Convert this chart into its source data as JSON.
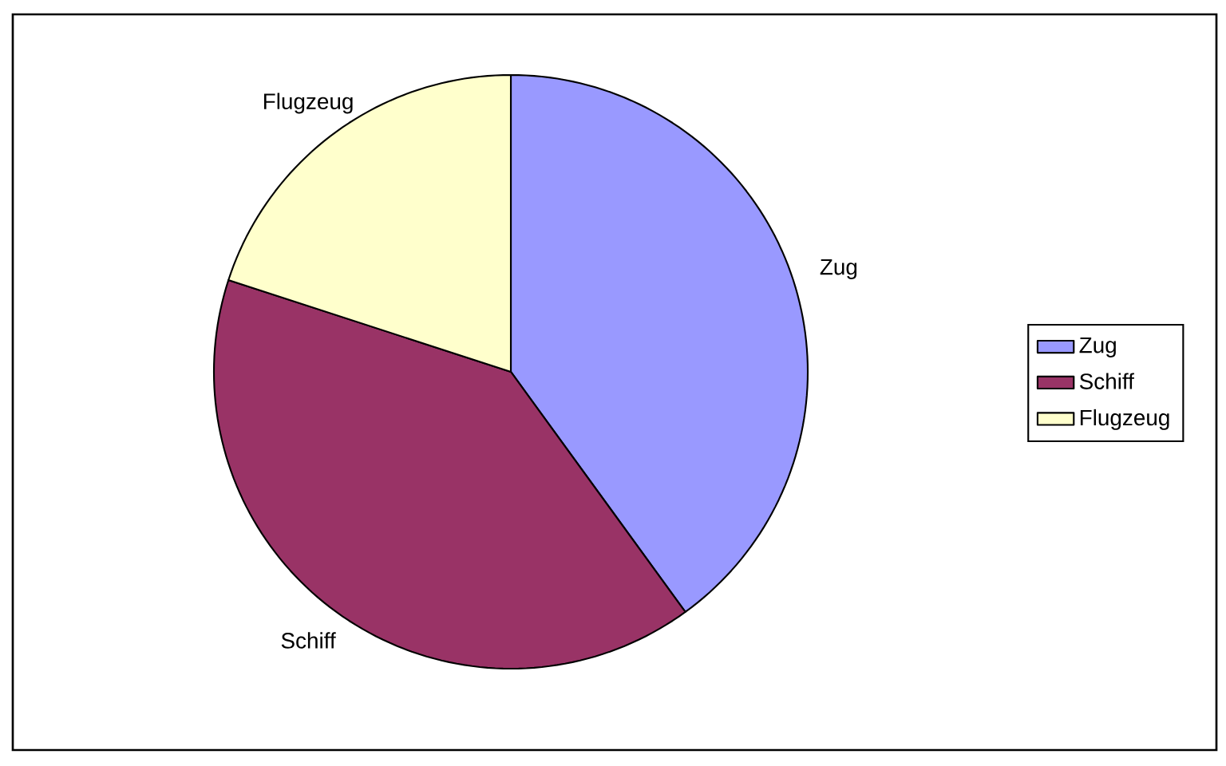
{
  "chart_data": {
    "type": "pie",
    "categories": [
      "Zug",
      "Schiff",
      "Flugzeug"
    ],
    "values": [
      40,
      40,
      20
    ],
    "colors": [
      "#9999ff",
      "#993366",
      "#ffffcc"
    ],
    "legend": "right"
  }
}
